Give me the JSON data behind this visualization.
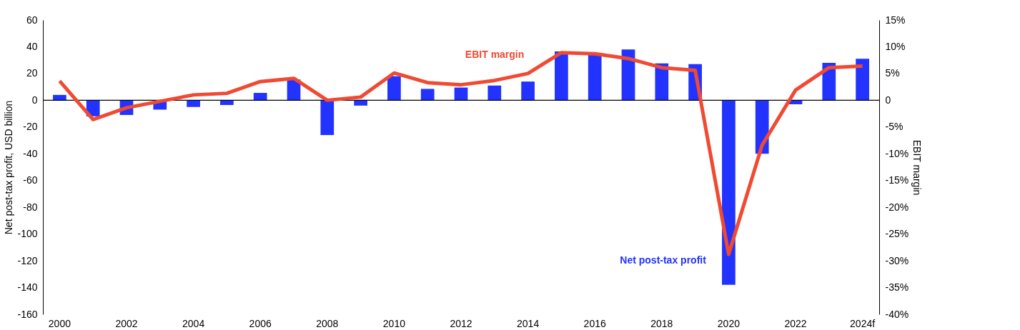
{
  "chart_data": {
    "type": "bar",
    "ylabel": "Net post-tax profit, USD billion",
    "y2label": "EBIT margin",
    "categories": [
      "2000",
      null,
      "2002",
      null,
      "2004",
      null,
      "2006",
      null,
      "2008",
      null,
      "2010",
      null,
      "2012",
      null,
      "2014",
      null,
      "2016",
      null,
      "2018",
      null,
      "2020",
      null,
      "2022",
      null,
      "2024f"
    ],
    "series": [
      {
        "name": "Net post-tax profit",
        "color": "#2233ff",
        "values": [
          4,
          -12,
          -11,
          -7,
          -5,
          -3.5,
          5.5,
          15.5,
          -26,
          -4,
          18,
          8.5,
          9.5,
          11,
          14,
          36.5,
          35,
          38,
          27.5,
          27,
          -138,
          -40,
          -3,
          28,
          31
        ]
      },
      {
        "name": "EBIT margin",
        "type": "line",
        "axis": "y2",
        "color": "#f04a32",
        "values": [
          3.6,
          -3.6,
          -1.4,
          -0.2,
          1.0,
          1.3,
          3.5,
          4.1,
          0,
          0.6,
          5.1,
          3.3,
          2.9,
          3.7,
          5.0,
          8.9,
          8.7,
          7.8,
          6.1,
          5.6,
          -28.8,
          -8.4,
          1.9,
          6.1,
          6.4
        ]
      }
    ],
    "ylim": [
      -160,
      60
    ],
    "yticks": [
      -160,
      -140,
      -120,
      -100,
      -80,
      -60,
      -40,
      -20,
      0,
      20,
      40,
      60
    ],
    "y2lim": [
      -40,
      15
    ],
    "y2ticks": [
      {
        "value": -40,
        "label": "-40%"
      },
      {
        "value": -35,
        "label": "-35%"
      },
      {
        "value": -30,
        "label": "-30%"
      },
      {
        "value": -25,
        "label": "-25%"
      },
      {
        "value": -20,
        "label": "-20%"
      },
      {
        "value": -15,
        "label": "-15%"
      },
      {
        "value": -10,
        "label": "-10%"
      },
      {
        "value": -5,
        "label": "-5%"
      },
      {
        "value": 0,
        "label": "0"
      },
      {
        "value": 5,
        "label": "5%"
      },
      {
        "value": 10,
        "label": "10%"
      },
      {
        "value": 15,
        "label": "15%"
      }
    ],
    "ref_lines": [
      {
        "axis": "y",
        "value": 0,
        "color": "#000000"
      }
    ],
    "grid": false
  }
}
